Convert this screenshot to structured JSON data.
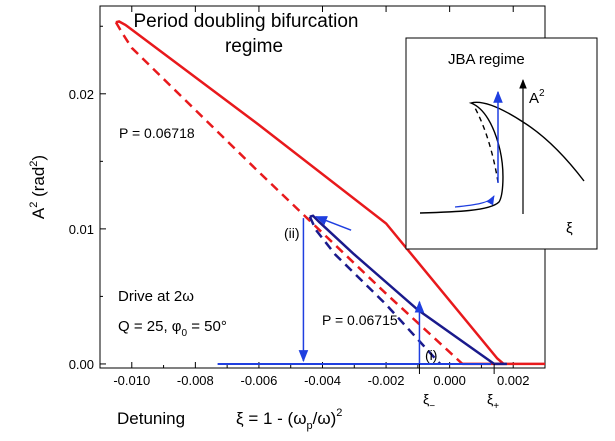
{
  "chart_data": {
    "type": "line",
    "title_line1": "Period doubling bifurcation",
    "title_line2": "regime",
    "xlabel": "Detuning",
    "xlabel_formula": {
      "lhs": "ξ = 1 - (ω",
      "sub": "p",
      "mid": "/ω)",
      "sup": "2"
    },
    "ylabel": {
      "base": "A",
      "sup": "2",
      "unit_open": " (rad",
      "unit_sup": "2",
      "unit_close": ")"
    },
    "xlim": [
      -0.011,
      0.003
    ],
    "ylim": [
      -0.0003,
      0.0265
    ],
    "x_ticks": [
      -0.01,
      -0.008,
      -0.006,
      -0.004,
      -0.002,
      0.0,
      0.002
    ],
    "x_tick_labels": [
      "-0.010",
      "-0.008",
      "-0.006",
      "-0.004",
      "-0.002",
      "0.000",
      "0.002"
    ],
    "y_ticks": [
      0.0,
      0.01,
      0.02
    ],
    "y_tick_labels": [
      "0.00",
      "0.01",
      "0.02"
    ],
    "series": [
      {
        "label": "P = 0.06718",
        "color": "#e8191c",
        "stable_upper": [
          [
            -0.0105,
            0.0253
          ],
          [
            -0.0104,
            0.02535
          ],
          [
            -0.0102,
            0.0251
          ],
          [
            -0.006,
            0.0177
          ],
          [
            -0.002,
            0.0104
          ],
          [
            0.0015,
            0.0004
          ],
          [
            0.0017,
            0.0
          ]
        ],
        "unstable": [
          [
            -0.0105,
            0.0253
          ],
          [
            -0.0103,
            0.0245
          ],
          [
            -0.01,
            0.0234
          ],
          [
            -0.006,
            0.0142
          ],
          [
            -0.002,
            0.0052
          ],
          [
            0.0004,
            0.0
          ]
        ],
        "zero_branch": [
          [
            0.0004,
            0.0
          ],
          [
            0.003,
            0.0
          ]
        ]
      },
      {
        "label": "P = 0.06715",
        "color": "#1a1a8c",
        "stable_upper": [
          [
            -0.0044,
            0.0109
          ],
          [
            -0.0043,
            0.01097
          ],
          [
            -0.0041,
            0.0105
          ],
          [
            -0.003,
            0.0081
          ],
          [
            -0.001,
            0.004
          ],
          [
            0.0014,
            0.0
          ]
        ],
        "unstable": [
          [
            -0.0044,
            0.0109
          ],
          [
            -0.0042,
            0.0099
          ],
          [
            -0.0036,
            0.0081
          ],
          [
            -0.002,
            0.0044
          ],
          [
            -0.0003,
            0.0
          ]
        ],
        "zero_branch": [
          [
            0.0014,
            0.0
          ],
          [
            0.0018,
            0.0
          ]
        ]
      }
    ],
    "arrow_color": "#1f3fe0",
    "hysteresis_path": {
      "baseline_x": [
        -0.0073,
        0.0013
      ],
      "jump_down_x": -0.0046,
      "jump_down_from": 0.0108,
      "jump_up_x": -0.00095,
      "jump_up_to": 0.0046,
      "annotation_arrow": {
        "from": [
          -0.0031,
          0.0099
        ],
        "to": [
          -0.0042,
          0.0109
        ]
      }
    },
    "annotations": {
      "p_high": "P = 0.06718",
      "p_low": "P = 0.06715",
      "point_ii": "(ii)",
      "point_i": "(i)",
      "drive": "Drive at 2ω",
      "params": {
        "q": "Q = 25, φ",
        "sub": "0",
        "rest": " = 50°"
      },
      "xi_minus": {
        "base": "ξ",
        "sub": "−"
      },
      "xi_plus": {
        "base": "ξ",
        "sub": "+"
      }
    },
    "inset": {
      "title": "JBA regime",
      "ylabel": {
        "base": "A",
        "sup": "2"
      },
      "xlabel": "ξ"
    }
  }
}
